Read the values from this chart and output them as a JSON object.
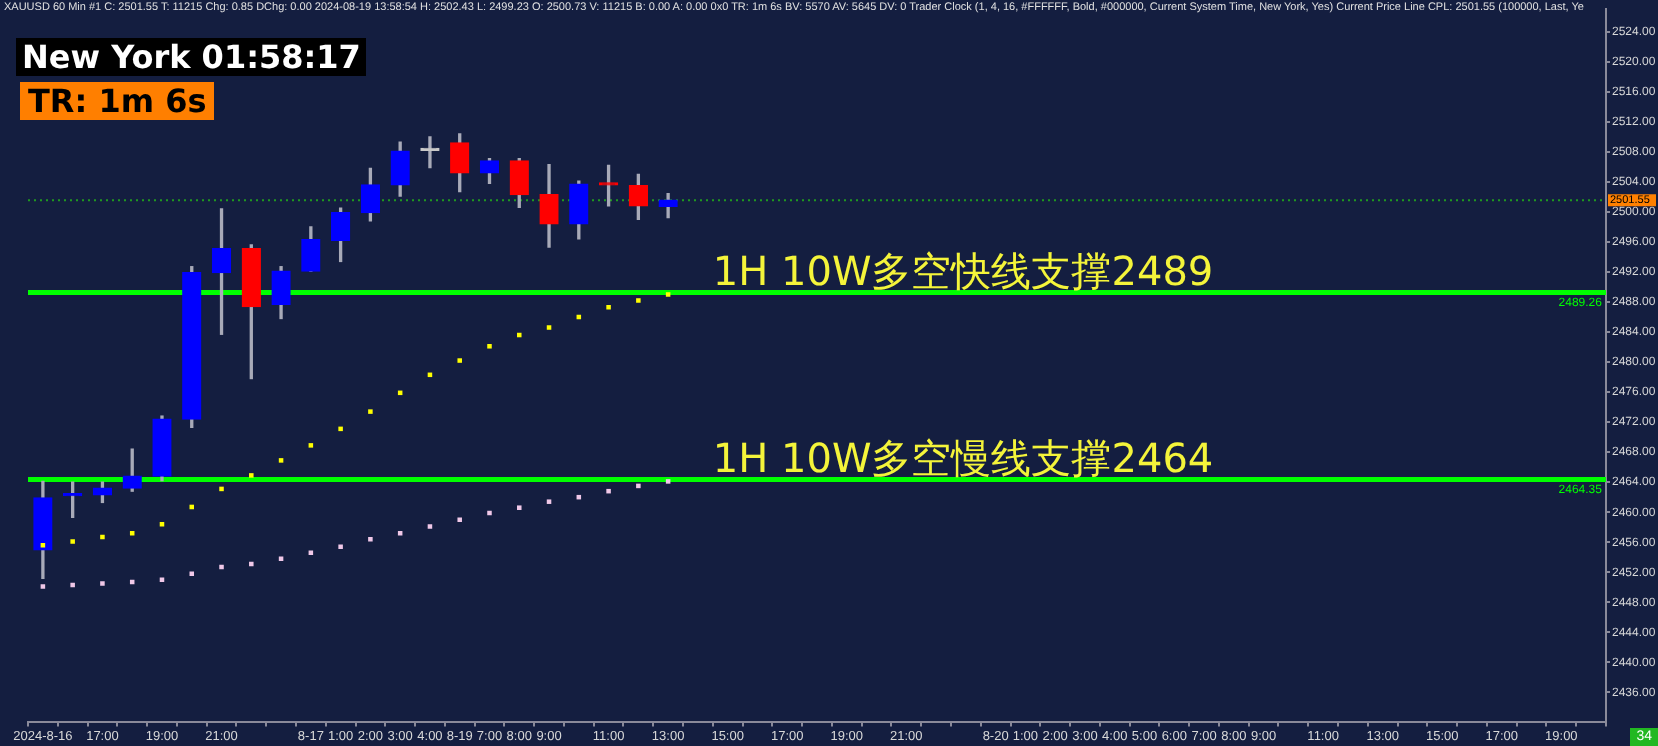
{
  "chart_data": {
    "type": "candlestick",
    "title": "XAUUSD  60 Min   #1  C: 2501.55  T: 11215  Chg: 0.85  DChg: 0.00  2024-08-19 13:58:54  H: 2502.43  L: 2499.23  O: 2500.73  V: 11215  B: 0.00  A: 0.00  0x0  TR: 1m 6s  BV: 5570  AV: 5645  DV: 0  Trader Clock   (1, 4, 16, #FFFFFF, Bold, #000000, Current System Time, New York, Yes)  Current Price Line  CPL: 2501.55   (100000, Last, Ye",
    "categories": [
      "2024-8-16",
      null,
      "17:00",
      null,
      "19:00",
      null,
      "21:00",
      null,
      null,
      "8-17",
      "1:00",
      "2:00",
      "3:00",
      "4:00",
      "8-19",
      "7:00",
      "8:00",
      "9:00",
      null,
      "11:00",
      null,
      "13:00",
      null,
      "15:00",
      null,
      "17:00",
      null,
      "19:00",
      null,
      "21:00",
      null,
      null,
      "8-20",
      "1:00",
      "2:00",
      "3:00",
      "4:00",
      "5:00",
      "6:00",
      "7:00",
      "8:00",
      "9:00",
      null,
      "11:00",
      null,
      "13:00",
      null,
      "15:00",
      null,
      "17:00",
      null,
      "19:00",
      null
    ],
    "series": [
      {
        "type": "candlestick",
        "ohlc": [
          [
            2455.0,
            2464.1,
            2451.2,
            2461.9
          ],
          [
            2462.2,
            2464.0,
            2459.3,
            2462.4
          ],
          [
            2462.3,
            2464.0,
            2461.3,
            2463.2
          ],
          [
            2463.2,
            2468.4,
            2462.8,
            2464.8
          ],
          [
            2464.8,
            2472.8,
            2464.2,
            2472.4
          ],
          [
            2472.4,
            2492.7,
            2471.3,
            2491.9
          ],
          [
            2491.9,
            2500.4,
            2483.7,
            2495.1
          ],
          [
            2495.1,
            2495.6,
            2477.8,
            2487.4
          ],
          [
            2487.7,
            2492.7,
            2485.8,
            2492.1
          ],
          [
            2492.1,
            2498.0,
            2492.1,
            2496.3
          ],
          [
            2496.2,
            2500.5,
            2493.4,
            2499.9
          ],
          [
            2499.9,
            2505.8,
            2498.8,
            2503.6
          ],
          [
            2503.6,
            2509.3,
            2502.1,
            2508.1
          ],
          [
            2508.2,
            2510.0,
            2505.9,
            2508.2
          ],
          [
            2509.2,
            2510.4,
            2502.7,
            2505.2
          ],
          [
            2505.2,
            2507.1,
            2503.8,
            2506.8
          ],
          [
            2506.8,
            2507.1,
            2500.6,
            2502.3
          ],
          [
            2502.3,
            2506.3,
            2495.3,
            2498.4
          ],
          [
            2498.4,
            2504.1,
            2496.4,
            2503.7
          ],
          [
            2503.7,
            2506.2,
            2500.8,
            2503.6
          ],
          [
            2503.5,
            2505.0,
            2499.0,
            2500.8
          ],
          [
            2500.73,
            2502.43,
            2499.23,
            2501.55
          ],
          null,
          null,
          null,
          null,
          null,
          null,
          null,
          null,
          null,
          null,
          null,
          null,
          null,
          null,
          null,
          null,
          null,
          null,
          null,
          null,
          null,
          null,
          null,
          null,
          null,
          null,
          null,
          null,
          null,
          null,
          null
        ],
        "colors": [
          "#0000ff",
          "#0000ff",
          "#0000ff",
          "#0000ff",
          "#0000ff",
          "#0000ff",
          "#0000ff",
          "#ff0000",
          "#0000ff",
          "#0000ff",
          "#0000ff",
          "#0000ff",
          "#0000ff",
          "#c8c8c8",
          "#ff0000",
          "#0000ff",
          "#ff0000",
          "#ff0000",
          "#0000ff",
          "#ff0000",
          "#ff0000",
          "#0000ff",
          null,
          null,
          null,
          null,
          null,
          null,
          null,
          null,
          null,
          null,
          null,
          null,
          null,
          null,
          null,
          null,
          null,
          null,
          null,
          null,
          null,
          null,
          null,
          null,
          null,
          null,
          null,
          null,
          null,
          null,
          null
        ]
      },
      {
        "type": "scatter",
        "color": "#ffff00",
        "values": [
          2455.6,
          2456.1,
          2456.7,
          2457.2,
          2458.4,
          2460.7,
          2463.1,
          2464.9,
          2466.9,
          2468.9,
          2471.1,
          2473.4,
          2475.9,
          2478.3,
          2480.2,
          2482.1,
          2483.6,
          2484.6,
          2486.0,
          2487.3,
          2488.2,
          2489.0,
          null,
          null,
          null,
          null,
          null,
          null,
          null,
          null,
          null,
          null,
          null,
          null,
          null,
          null,
          null,
          null,
          null,
          null,
          null,
          null,
          null,
          null,
          null,
          null,
          null,
          null,
          null,
          null,
          null,
          null,
          null
        ]
      },
      {
        "type": "scatter",
        "color": "#f0c8e8",
        "values": [
          2450.1,
          2450.3,
          2450.5,
          2450.7,
          2451.0,
          2451.8,
          2452.7,
          2453.1,
          2453.8,
          2454.6,
          2455.4,
          2456.4,
          2457.2,
          2458.1,
          2459.0,
          2459.9,
          2460.6,
          2461.4,
          2462.0,
          2462.8,
          2463.5,
          2464.1,
          null,
          null,
          null,
          null,
          null,
          null,
          null,
          null,
          null,
          null,
          null,
          null,
          null,
          null,
          null,
          null,
          null,
          null,
          null,
          null,
          null,
          null,
          null,
          null,
          null,
          null,
          null,
          null,
          null,
          null,
          null
        ]
      }
    ],
    "ylim": [
      2432,
      2527
    ],
    "yticks": [
      {
        "value": 2436,
        "label": "2436.00"
      },
      {
        "value": 2440,
        "label": "2440.00"
      },
      {
        "value": 2444,
        "label": "2444.00"
      },
      {
        "value": 2448,
        "label": "2448.00"
      },
      {
        "value": 2452,
        "label": "2452.00"
      },
      {
        "value": 2456,
        "label": "2456.00"
      },
      {
        "value": 2460,
        "label": "2460.00"
      },
      {
        "value": 2464,
        "label": "2464.00"
      },
      {
        "value": 2468,
        "label": "2468.00"
      },
      {
        "value": 2472,
        "label": "2472.00"
      },
      {
        "value": 2476,
        "label": "2476.00"
      },
      {
        "value": 2480,
        "label": "2480.00"
      },
      {
        "value": 2484,
        "label": "2484.00"
      },
      {
        "value": 2488,
        "label": "2488.00"
      },
      {
        "value": 2492,
        "label": "2492.00"
      },
      {
        "value": 2496,
        "label": "2496.00"
      },
      {
        "value": 2500,
        "label": "2500.00"
      },
      {
        "value": 2504,
        "label": "2504.00"
      },
      {
        "value": 2508,
        "label": "2508.00"
      },
      {
        "value": 2512,
        "label": "2512.00"
      },
      {
        "value": 2516,
        "label": "2516.00"
      },
      {
        "value": 2520,
        "label": "2520.00"
      },
      {
        "value": 2524,
        "label": "2524.00"
      }
    ],
    "ref_lines": [
      {
        "axis": "y",
        "value": 2489.26,
        "label": "2489.26",
        "color": "#00ff00"
      },
      {
        "axis": "y",
        "value": 2464.35,
        "label": "2464.35",
        "color": "#00ff00"
      },
      {
        "axis": "y",
        "value": 2501.55,
        "label": "2501.55",
        "color": "#1f9a1f",
        "line_style": "dotted"
      }
    ],
    "annotations": [
      "New York 01:58:17",
      "TR: 1m 6s",
      {
        "text": "1H 10W多空快线支撑2489",
        "y": 2489.26
      },
      {
        "text": "1H 10W多空慢线支撑2464",
        "y": 2464.35
      },
      "34"
    ],
    "marker": "square",
    "grid": false,
    "legend": false
  }
}
